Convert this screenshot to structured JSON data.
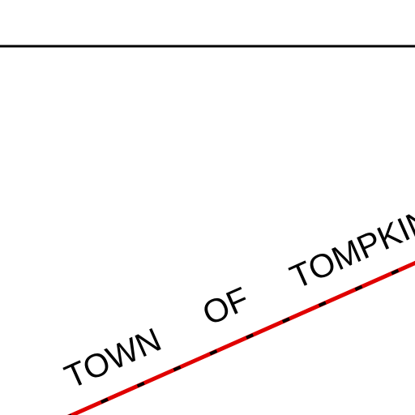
{
  "map": {
    "labels": [
      "TOWN",
      "OF",
      "TOMPKINS"
    ]
  }
}
